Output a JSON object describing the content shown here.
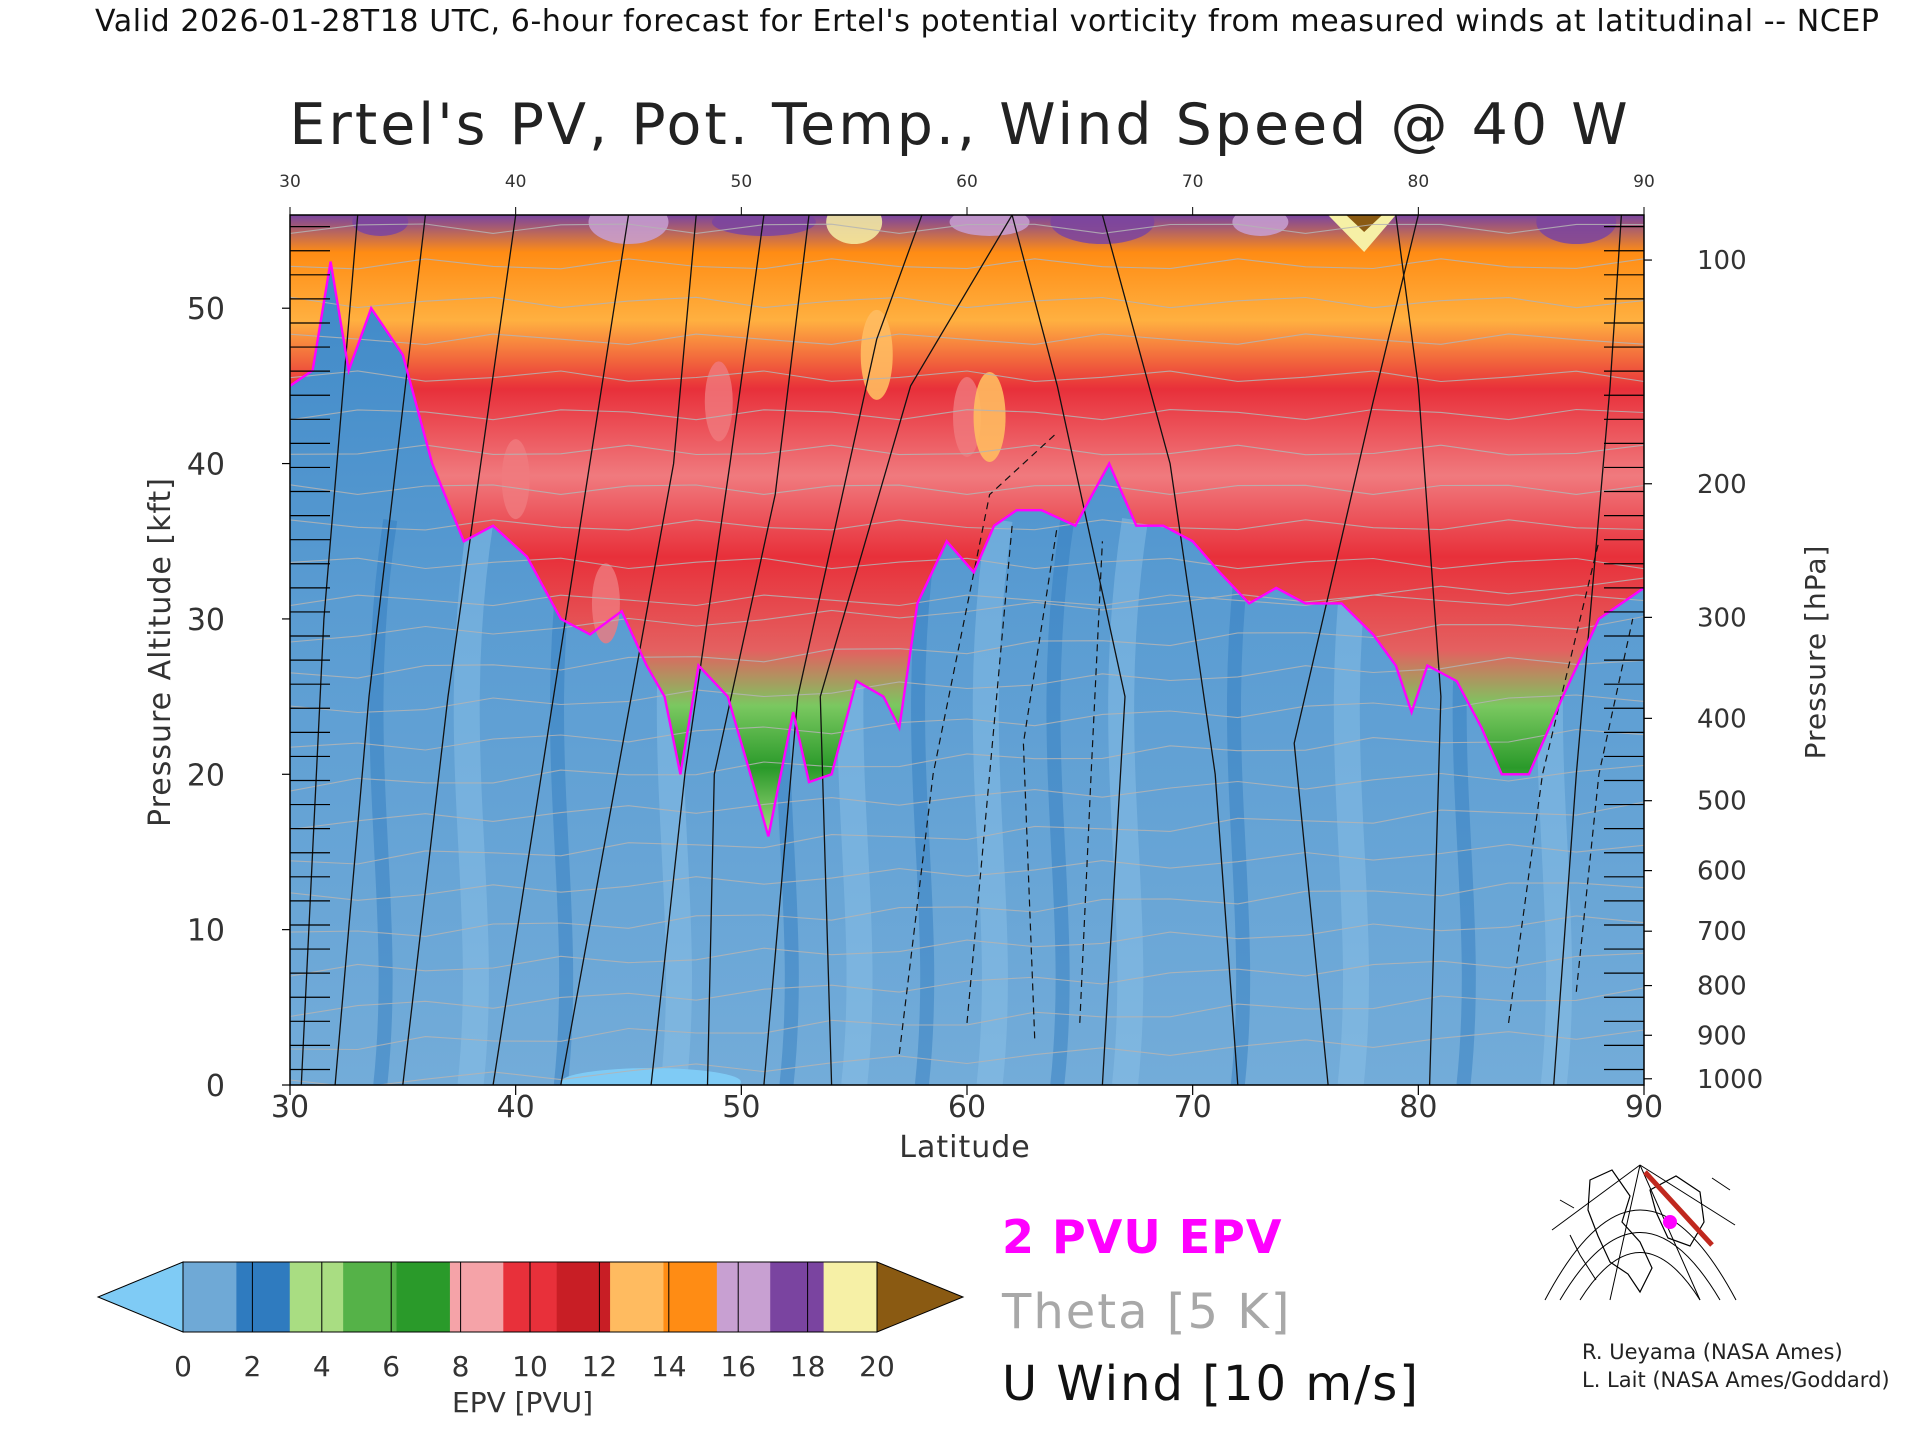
{
  "header": {
    "valid_line": "Valid 2026-01-28T18 UTC, 6-hour forecast for Ertel's potential vorticity from measured winds at latitudinal -- NCEP",
    "title": "Ertel's PV, Pot. Temp., Wind Speed @ 40 W"
  },
  "chart_data": {
    "type": "heatmap",
    "title": "Ertel's PV, Pot. Temp., Wind Speed @ 40 W",
    "xlabel": "Latitude",
    "ylabel_left": "Pressure Altitude [kft]",
    "ylabel_right": "Pressure [hPa]",
    "xlim": [
      30,
      90
    ],
    "ylim": [
      0,
      56
    ],
    "x_ticks": [
      30,
      40,
      50,
      60,
      70,
      80,
      90
    ],
    "y_ticks": [
      0,
      10,
      20,
      30,
      40,
      50
    ],
    "pressure_ticks": [
      {
        "hpa": "100",
        "kft": 53.1
      },
      {
        "hpa": "200",
        "kft": 38.7
      },
      {
        "hpa": "300",
        "kft": 30.1
      },
      {
        "hpa": "400",
        "kft": 23.6
      },
      {
        "hpa": "500",
        "kft": 18.3
      },
      {
        "hpa": "600",
        "kft": 13.8
      },
      {
        "hpa": "700",
        "kft": 9.9
      },
      {
        "hpa": "800",
        "kft": 6.4
      },
      {
        "hpa": "900",
        "kft": 3.2
      },
      {
        "hpa": "1000",
        "kft": 0.4
      }
    ],
    "tropopause_2pvu_kft": [
      [
        30.0,
        45
      ],
      [
        31.0,
        46
      ],
      [
        31.8,
        53
      ],
      [
        32.6,
        46
      ],
      [
        33.6,
        50
      ],
      [
        35.0,
        47
      ],
      [
        36.3,
        40
      ],
      [
        37.7,
        35
      ],
      [
        39.0,
        36
      ],
      [
        40.5,
        34
      ],
      [
        42.0,
        30
      ],
      [
        43.3,
        29
      ],
      [
        44.7,
        30.5
      ],
      [
        45.8,
        27
      ],
      [
        46.6,
        25
      ],
      [
        47.3,
        20
      ],
      [
        48.1,
        27
      ],
      [
        49.4,
        25
      ],
      [
        50.6,
        19
      ],
      [
        51.2,
        16
      ],
      [
        52.3,
        24
      ],
      [
        53.0,
        19.5
      ],
      [
        54.0,
        20
      ],
      [
        55.1,
        26
      ],
      [
        56.3,
        25
      ],
      [
        57.0,
        23
      ],
      [
        57.8,
        31
      ],
      [
        59.1,
        35
      ],
      [
        60.3,
        33
      ],
      [
        61.2,
        36
      ],
      [
        62.2,
        37
      ],
      [
        63.3,
        37
      ],
      [
        64.8,
        36
      ],
      [
        66.3,
        40
      ],
      [
        67.5,
        36
      ],
      [
        68.7,
        36
      ],
      [
        70.0,
        35
      ],
      [
        71.2,
        33
      ],
      [
        72.5,
        31
      ],
      [
        73.7,
        32
      ],
      [
        75.0,
        31
      ],
      [
        76.6,
        31
      ],
      [
        78.0,
        29
      ],
      [
        79.0,
        27
      ],
      [
        79.7,
        24
      ],
      [
        80.4,
        27
      ],
      [
        81.7,
        26
      ],
      [
        82.8,
        23
      ],
      [
        83.7,
        20
      ],
      [
        84.9,
        20
      ],
      [
        86.4,
        25
      ],
      [
        88.0,
        30
      ],
      [
        90.0,
        32
      ]
    ],
    "colorbar": {
      "label": "EPV [PVU]",
      "ticks": [
        0,
        2,
        4,
        6,
        8,
        10,
        12,
        14,
        16,
        18,
        20
      ],
      "colors": [
        "#7fcbf5",
        "#6fa9d6",
        "#2f7bbf",
        "#a9dd82",
        "#55b248",
        "#2a9a2a",
        "#f5a3a8",
        "#e8303a",
        "#c81e25",
        "#ffbb60",
        "#ff8c14",
        "#c8a0d2",
        "#7a44a0",
        "#f6f0a6",
        "#8a5a12"
      ]
    },
    "legend": [
      {
        "label": "2 PVU EPV",
        "color": "#ff00ff"
      },
      {
        "label": "Theta [5 K]",
        "color": "#a8a8a8"
      },
      {
        "label": "U Wind [10 m/s]",
        "color": "#111111"
      }
    ]
  },
  "credits": {
    "line1": "R. Ueyama (NASA Ames)",
    "line2": "L. Lait (NASA Ames/Goddard)"
  },
  "map_inset": {
    "transect_color": "#c0281e",
    "marker_color": "#ff00ff"
  }
}
